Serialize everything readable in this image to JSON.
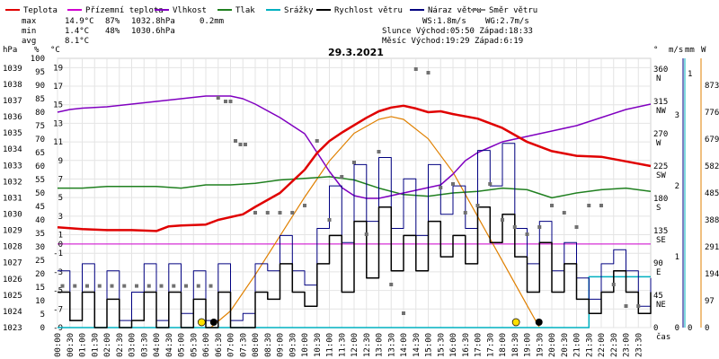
{
  "chart_data": {
    "type": "line",
    "title": "29.3.2021",
    "legend": [
      {
        "label": "Teplota",
        "color": "#e00000"
      },
      {
        "label": "Přízemní teplota",
        "color": "#d000d0"
      },
      {
        "label": "Vlhkost",
        "color": "#8000c0"
      },
      {
        "label": "Tlak",
        "color": "#208020"
      },
      {
        "label": "Srážky",
        "color": "#00b0c0"
      },
      {
        "label": "Rychlost větru",
        "color": "#000000"
      },
      {
        "label": "Náraz větru",
        "color": "#000080"
      },
      {
        "label": "Směr větru",
        "color": "#808080"
      }
    ],
    "stats": {
      "max_label": "max",
      "max_temp": "14.9°C",
      "max_hum": "87%",
      "max_press": "1032.8hPa",
      "max_rain": "0.2mm",
      "min_label": "min",
      "min_temp": "1.4°C",
      "min_hum": "48%",
      "min_press": "1030.6hPa",
      "avg_label": "avg",
      "avg_temp": "8.1°C",
      "ws": "WS:1.8m/s",
      "wg": "WG:2.7m/s",
      "sun": "Slunce Východ:05:50  Západ:18:33",
      "moon": "Měsíc  Východ:19:29  Západ:6:19"
    },
    "axes": {
      "hpa_label": "hPa",
      "pct_label": "%",
      "c_label": "°C",
      "deg_label": "°",
      "ms_label": "m/s",
      "mm_label": "mm",
      "w_label": "W",
      "x_label": "čas",
      "hpa_ticks": [
        "1039",
        "1038",
        "1037",
        "1036",
        "1035",
        "1034",
        "1033",
        "1032",
        "1031",
        "1030",
        "1029",
        "1028",
        "1027",
        "1026",
        "1025",
        "1024",
        "1023"
      ],
      "pct_ticks": [
        "100",
        "95",
        "90",
        "85",
        "80",
        "75",
        "70",
        "65",
        "60",
        "55",
        "50",
        "45",
        "40",
        "35",
        "30",
        "25",
        "20",
        "15",
        "10",
        "5",
        "0"
      ],
      "c_ticks": [
        "19",
        "17",
        "15",
        "13",
        "11",
        "9",
        "7",
        "5",
        "3",
        "1",
        "0",
        "-1",
        "-3",
        "-5",
        "-7",
        "-9"
      ],
      "dir_ticks": [
        {
          "v": "360",
          "s": "N"
        },
        {
          "v": "315",
          "s": "NW"
        },
        {
          "v": "270",
          "s": "W"
        },
        {
          "v": "225",
          "s": "SW"
        },
        {
          "v": "180",
          "s": "S"
        },
        {
          "v": "135",
          "s": "SE"
        },
        {
          "v": "90",
          "s": "E"
        },
        {
          "v": "45",
          "s": "NE"
        },
        {
          "v": "0",
          "s": ""
        }
      ],
      "ms_ticks": [
        "3",
        "2",
        "1",
        "0"
      ],
      "mm_ticks": [
        "1",
        "0"
      ],
      "w_ticks": [
        "873",
        "776",
        "679",
        "582",
        "485",
        "388",
        "291",
        "194",
        "97",
        "0"
      ],
      "times": [
        "00:00",
        "00:30",
        "01:00",
        "01:30",
        "02:00",
        "02:30",
        "03:00",
        "03:30",
        "04:00",
        "04:30",
        "05:00",
        "05:30",
        "06:00",
        "06:30",
        "07:00",
        "07:30",
        "08:00",
        "08:30",
        "09:00",
        "09:30",
        "10:00",
        "10:30",
        "11:00",
        "11:30",
        "12:00",
        "12:30",
        "13:00",
        "13:30",
        "14:00",
        "14:30",
        "15:00",
        "15:30",
        "16:00",
        "16:30",
        "17:00",
        "17:30",
        "18:00",
        "18:30",
        "19:00",
        "19:30",
        "20:00",
        "20:30",
        "21:00",
        "21:30",
        "22:00",
        "22:30",
        "23:00",
        "23:30"
      ]
    },
    "ground_temp_c": 0,
    "temperature": {
      "x": [
        0,
        0.5,
        1,
        2,
        3,
        4,
        4.5,
        5,
        6,
        6.5,
        7,
        7.5,
        8,
        9,
        10,
        10.5,
        11,
        11.5,
        12,
        12.5,
        13,
        13.5,
        14,
        14.5,
        15,
        15.5,
        16,
        17,
        18,
        19,
        20,
        21,
        22,
        23,
        24
      ],
      "y": [
        1.8,
        1.7,
        1.6,
        1.5,
        1.5,
        1.4,
        1.9,
        2.0,
        2.1,
        2.6,
        2.9,
        3.2,
        4.0,
        5.5,
        8.0,
        9.8,
        11.1,
        12.0,
        12.8,
        13.6,
        14.3,
        14.7,
        14.9,
        14.6,
        14.2,
        14.3,
        14.0,
        13.5,
        12.5,
        11.0,
        10.0,
        9.5,
        9.4,
        8.9,
        8.4
      ]
    },
    "humidity": {
      "x": [
        0,
        0.5,
        1,
        2,
        3,
        4,
        5,
        6,
        7,
        7.5,
        8,
        9,
        10,
        10.5,
        11,
        11.5,
        12,
        12.5,
        13,
        13.5,
        14,
        14.5,
        15,
        15.5,
        16,
        16.5,
        17,
        17.5,
        18,
        19,
        20,
        21,
        22,
        23,
        24
      ],
      "y": [
        80,
        81,
        81.5,
        82,
        83,
        84,
        85,
        86,
        86,
        85,
        83,
        78,
        72,
        65,
        58,
        52,
        49,
        48,
        48,
        49,
        50,
        51,
        52,
        53,
        57,
        62,
        65,
        67,
        69,
        71,
        73,
        75,
        78,
        81,
        83
      ]
    },
    "pressure": {
      "x": [
        0,
        1,
        2,
        3,
        4,
        5,
        6,
        7,
        8,
        9,
        10,
        11,
        12,
        13,
        14,
        15,
        16,
        17,
        18,
        19,
        20,
        21,
        22,
        23,
        24
      ],
      "y": [
        1031.6,
        1031.6,
        1031.7,
        1031.7,
        1031.7,
        1031.6,
        1031.8,
        1031.8,
        1031.9,
        1032.1,
        1032.2,
        1032.3,
        1032.1,
        1031.6,
        1031.2,
        1031.1,
        1031.3,
        1031.4,
        1031.6,
        1031.5,
        1031.0,
        1031.3,
        1031.5,
        1031.6,
        1031.4
      ]
    },
    "rain_mm": {
      "x": [
        0,
        21.5,
        21.5,
        24
      ],
      "y": [
        0,
        0,
        0.2,
        0.2
      ]
    },
    "solar_w": {
      "x": [
        6.2,
        7,
        8,
        9,
        10,
        11,
        12,
        13,
        13.5,
        14,
        15,
        16,
        17,
        18,
        19,
        19.5
      ],
      "y": [
        0,
        60,
        190,
        330,
        470,
        600,
        700,
        750,
        760,
        750,
        680,
        560,
        400,
        240,
        80,
        0
      ]
    },
    "wind_speed": {
      "x": [
        0,
        0.5,
        1,
        1.5,
        2,
        2.5,
        3,
        3.5,
        4,
        4.5,
        5,
        5.5,
        6,
        6.5,
        7,
        7.5,
        8,
        8.5,
        9,
        9.5,
        10,
        10.5,
        11,
        11.5,
        12,
        12.5,
        13,
        13.5,
        14,
        14.5,
        15,
        15.5,
        16,
        16.5,
        17,
        17.5,
        18,
        18.5,
        19,
        19.5,
        20,
        20.5,
        21,
        21.5,
        22,
        22.5,
        23,
        23.5,
        24
      ],
      "y": [
        0.5,
        0.1,
        0.5,
        0,
        0.4,
        0,
        0.1,
        0.5,
        0,
        0.5,
        0,
        0.4,
        0,
        0.5,
        0,
        0,
        0.5,
        0.4,
        0.9,
        0.5,
        0.3,
        0.9,
        1.3,
        0.5,
        1.5,
        0.7,
        1.7,
        0.8,
        1.3,
        0.8,
        1.5,
        1.0,
        1.3,
        0.9,
        1.7,
        1.2,
        1.6,
        1.0,
        0.5,
        1.2,
        0.5,
        0.9,
        0.4,
        0.2,
        0.5,
        0.8,
        0.5,
        0.2,
        0.5
      ]
    },
    "wind_gust": {
      "x": [
        0,
        0.5,
        1,
        1.5,
        2,
        2.5,
        3,
        3.5,
        4,
        4.5,
        5,
        5.5,
        6,
        6.5,
        7,
        7.5,
        8,
        8.5,
        9,
        9.5,
        10,
        10.5,
        11,
        11.5,
        12,
        12.5,
        13,
        13.5,
        14,
        14.5,
        15,
        15.5,
        16,
        16.5,
        17,
        17.5,
        18,
        18.5,
        19,
        19.5,
        20,
        20.5,
        21,
        21.5,
        22,
        22.5,
        23,
        23.5,
        24
      ],
      "y": [
        0.8,
        0.1,
        0.9,
        0,
        0.8,
        0.1,
        0.5,
        0.9,
        0.1,
        0.9,
        0.2,
        0.8,
        0.1,
        0.9,
        0.1,
        0.2,
        0.9,
        0.8,
        1.3,
        0.8,
        0.6,
        1.4,
        2.0,
        1.2,
        2.3,
        1.5,
        2.4,
        1.4,
        2.1,
        1.3,
        2.3,
        1.6,
        2.0,
        1.4,
        2.5,
        2.0,
        2.6,
        1.4,
        0.9,
        1.5,
        0.8,
        1.2,
        0.7,
        0.4,
        0.9,
        1.1,
        0.8,
        0.3,
        0.7
      ]
    },
    "wind_dir_deg": {
      "x": [
        0.2,
        0.7,
        1.2,
        1.7,
        2.2,
        2.7,
        3.2,
        3.7,
        4.2,
        4.7,
        5.2,
        5.7,
        6.2,
        6.5,
        6.8,
        7.0,
        7.2,
        7.4,
        7.6,
        8.0,
        8.5,
        9.0,
        9.5,
        10.0,
        10.5,
        11.0,
        11.5,
        12.0,
        12.5,
        13.0,
        13.5,
        14.0,
        14.5,
        15.0,
        15.5,
        16.0,
        16.5,
        17.0,
        17.5,
        18.0,
        18.5,
        19.0,
        19.5,
        20.0,
        20.5,
        21.0,
        21.5,
        22.0,
        22.5,
        23.0,
        23.5
      ],
      "y": [
        58,
        58,
        58,
        58,
        58,
        58,
        58,
        58,
        58,
        58,
        58,
        58,
        58,
        320,
        315,
        315,
        260,
        255,
        255,
        160,
        160,
        160,
        160,
        170,
        260,
        150,
        210,
        230,
        130,
        245,
        60,
        20,
        360,
        355,
        195,
        200,
        160,
        170,
        200,
        150,
        140,
        130,
        140,
        170,
        160,
        140,
        170,
        170,
        60,
        30,
        30
      ]
    },
    "sun_markers": [
      {
        "label": "sunrise",
        "x": 5.83
      },
      {
        "label": "sunset",
        "x": 18.55
      }
    ],
    "moon_markers": [
      {
        "label": "moonset",
        "x": 6.32
      },
      {
        "label": "moonrise",
        "x": 19.48
      }
    ]
  }
}
